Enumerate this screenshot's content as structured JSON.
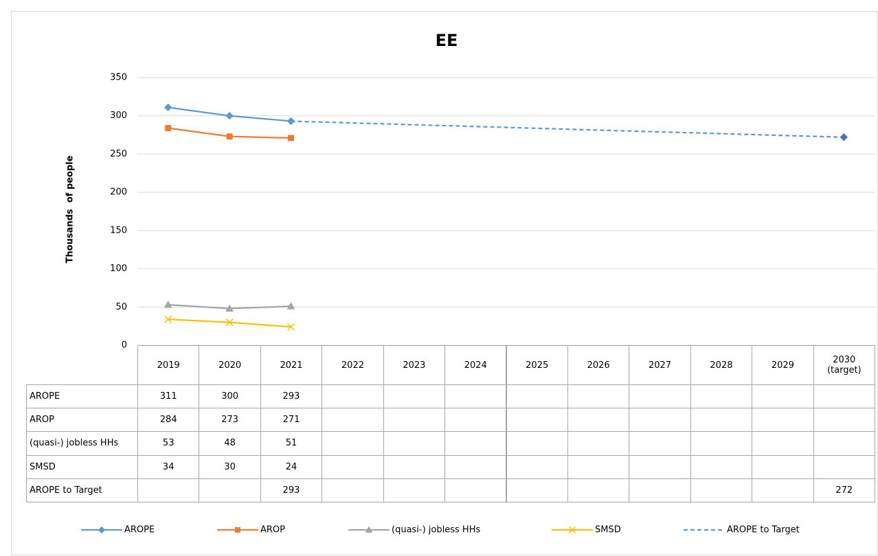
{
  "chart_data": {
    "type": "line",
    "title": "EE",
    "y_label": "Thousands  of people",
    "categories": [
      "2019",
      "2020",
      "2021",
      "2022",
      "2023",
      "2024",
      "2025",
      "2026",
      "2027",
      "2028",
      "2029",
      "2030 (target)"
    ],
    "series": [
      {
        "name": "AROPE",
        "color": "#5b9bd5",
        "marker": "diamond",
        "dash": false,
        "values": [
          311,
          300,
          293,
          null,
          null,
          null,
          null,
          null,
          null,
          null,
          null,
          null
        ]
      },
      {
        "name": "AROP",
        "color": "#ed7d31",
        "marker": "square",
        "dash": false,
        "values": [
          284,
          273,
          271,
          null,
          null,
          null,
          null,
          null,
          null,
          null,
          null,
          null
        ]
      },
      {
        "name": "(quasi-) jobless HHs",
        "color": "#a5a5a5",
        "marker": "triangle",
        "dash": false,
        "values": [
          53,
          48,
          51,
          null,
          null,
          null,
          null,
          null,
          null,
          null,
          null,
          null
        ]
      },
      {
        "name": "SMSD",
        "color": "#ffc000",
        "marker": "x",
        "dash": false,
        "values": [
          34,
          30,
          24,
          null,
          null,
          null,
          null,
          null,
          null,
          null,
          null,
          null
        ]
      },
      {
        "name": "AROPE to Target",
        "color": "#4472c4",
        "marker": "diamond",
        "dash": true,
        "connect_gaps": true,
        "values": [
          null,
          null,
          293,
          null,
          null,
          null,
          null,
          null,
          null,
          null,
          null,
          272
        ]
      }
    ],
    "ylim": [
      0,
      350
    ],
    "yticks": [
      0,
      50,
      100,
      150,
      200,
      250,
      300,
      350
    ],
    "grid": true,
    "data_table": true,
    "legend": "bottom"
  }
}
